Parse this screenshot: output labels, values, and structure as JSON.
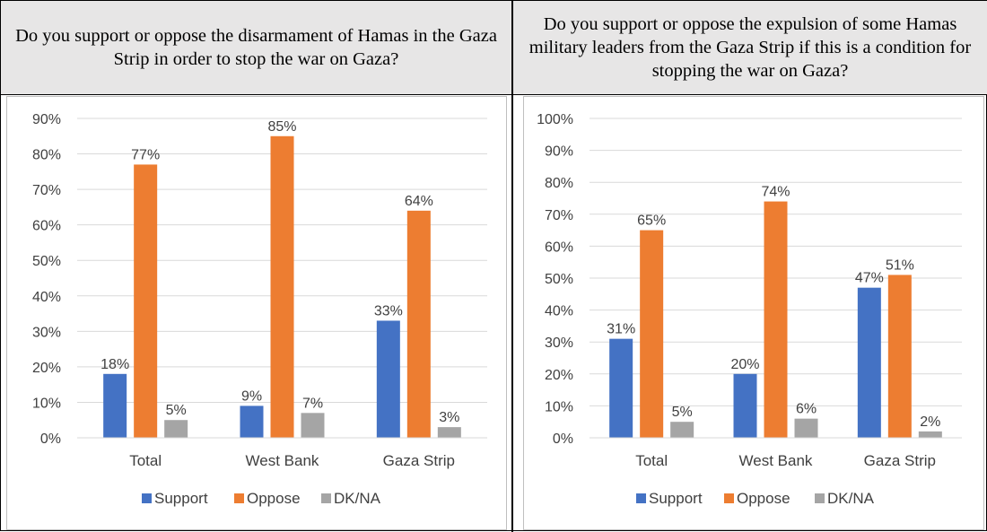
{
  "left": {
    "question": "Do you support or oppose the disarmament of Hamas in the Gaza Strip in order to stop the war on Gaza?"
  },
  "right": {
    "question": "Do you support or oppose the expulsion of some Hamas military leaders from the Gaza Strip if this is a condition for stopping the war on Gaza?"
  },
  "colors": {
    "Support": "#4472c4",
    "Oppose": "#ed7d31",
    "DK/NA": "#a5a5a5"
  },
  "chart_data": [
    {
      "type": "bar",
      "title": "Do you support or oppose the disarmament of Hamas in the Gaza Strip in order to stop the war on Gaza?",
      "categories": [
        "Total",
        "West Bank",
        "Gaza Strip"
      ],
      "series": [
        {
          "name": "Support",
          "values": [
            18,
            9,
            33
          ],
          "labels": [
            "18%",
            "9%",
            "33%"
          ]
        },
        {
          "name": "Oppose",
          "values": [
            77,
            85,
            64
          ],
          "labels": [
            "77%",
            "85%",
            "64%"
          ]
        },
        {
          "name": "DK/NA",
          "values": [
            5,
            7,
            3
          ],
          "labels": [
            "5%",
            "7%",
            "3%"
          ]
        }
      ],
      "ylim": [
        0,
        90
      ],
      "yticks": [
        "0%",
        "10%",
        "20%",
        "30%",
        "40%",
        "50%",
        "60%",
        "70%",
        "80%",
        "90%"
      ],
      "grid": true,
      "legend": "bottom"
    },
    {
      "type": "bar",
      "title": "Do you support or oppose the expulsion of some Hamas military leaders from the Gaza Strip if this is a condition for stopping the war on Gaza?",
      "categories": [
        "Total",
        "West Bank",
        "Gaza Strip"
      ],
      "series": [
        {
          "name": "Support",
          "values": [
            31,
            20,
            47
          ],
          "labels": [
            "31%",
            "20%",
            "47%"
          ]
        },
        {
          "name": "Oppose",
          "values": [
            65,
            74,
            51
          ],
          "labels": [
            "65%",
            "74%",
            "51%"
          ]
        },
        {
          "name": "DK/NA",
          "values": [
            5,
            6,
            2
          ],
          "labels": [
            "5%",
            "6%",
            "2%"
          ]
        }
      ],
      "ylim": [
        0,
        100
      ],
      "yticks": [
        "0%",
        "10%",
        "20%",
        "30%",
        "40%",
        "50%",
        "60%",
        "70%",
        "80%",
        "90%",
        "100%"
      ],
      "grid": true,
      "legend": "bottom"
    }
  ]
}
